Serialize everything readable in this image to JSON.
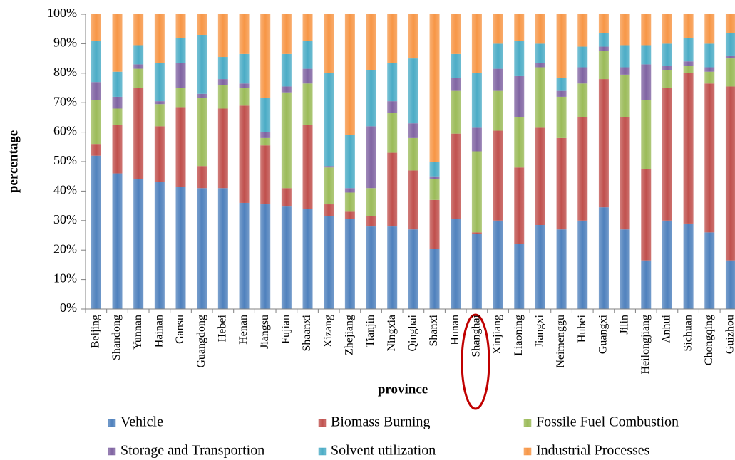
{
  "chart_data": {
    "type": "stacked_bar",
    "x_label": "province",
    "y_label": "percentage",
    "categories": [
      "Beijing",
      "Shandong",
      "Yunnan",
      "Hainan",
      "Gansu",
      "Guangdong",
      "Hebei",
      "Henan",
      "Jiangsu",
      "Fujian",
      "Shaanxi",
      "Xizang",
      "Zhejiang",
      "Tianjin",
      "Ningxia",
      "Qinghai",
      "Shanxi",
      "Hunan",
      "Shanghai",
      "Xinjiang",
      "Liaoning",
      "Jiangxi",
      "Neimenggu",
      "Hubei",
      "Guangxi",
      "Jilin",
      "Heilongjiang",
      "Anhui",
      "Sichuan",
      "Chongqing",
      "Guizhou"
    ],
    "series": [
      {
        "name": "Vehicle",
        "color": "#4f81bd",
        "values": [
          52,
          46,
          44,
          43,
          41.5,
          41,
          41,
          36,
          35.5,
          35,
          34,
          31.5,
          30.5,
          28,
          28,
          27,
          20.5,
          30.5,
          25.5,
          30,
          22,
          28.5,
          27,
          30,
          34.5,
          27,
          16.5,
          30,
          29,
          26,
          16.5
        ]
      },
      {
        "name": "Biomass Burning",
        "color": "#c0504d",
        "values": [
          4,
          16.5,
          31,
          19,
          27,
          7.5,
          27,
          33,
          20,
          6,
          28.5,
          4,
          2.5,
          3.5,
          25,
          20,
          16.5,
          29,
          0.5,
          30.5,
          26,
          33,
          31,
          35,
          43.5,
          38,
          31,
          45,
          51,
          50.5,
          59
        ]
      },
      {
        "name": "Fossile Fuel Combustion",
        "color": "#9bbb59",
        "values": [
          15,
          5.5,
          6.5,
          7.5,
          6.5,
          23,
          8,
          6,
          2.5,
          32.5,
          14,
          12.5,
          6.5,
          9.5,
          13.5,
          11,
          7,
          14.5,
          27.5,
          13.5,
          17,
          20.5,
          14,
          11.5,
          9.5,
          14.5,
          23.5,
          6,
          2.5,
          4,
          9.5
        ]
      },
      {
        "name": "Storage and Transportion",
        "color": "#8064a2",
        "values": [
          6,
          4,
          1.5,
          1,
          8.5,
          1.5,
          2,
          1.5,
          2,
          2,
          5,
          0.5,
          1.5,
          21,
          4,
          5,
          1,
          4.5,
          8,
          7.5,
          14,
          1.5,
          2,
          5.5,
          1.5,
          2.5,
          12,
          1.5,
          1.5,
          1.5,
          1
        ]
      },
      {
        "name": "Solvent utilization",
        "color": "#4bacc6",
        "values": [
          14,
          8.5,
          6.5,
          13,
          8.5,
          20,
          7.5,
          10,
          11.5,
          11,
          9.5,
          31.5,
          18,
          19,
          13,
          22,
          5,
          8,
          18.5,
          8.5,
          12,
          6.5,
          4.5,
          7,
          4.5,
          7.5,
          6.5,
          7.5,
          8,
          8,
          7.5
        ]
      },
      {
        "name": "Industrial Processes",
        "color": "#f79646",
        "values": [
          9,
          19.5,
          10.5,
          16.5,
          8,
          7,
          14.5,
          13.5,
          28.5,
          13.5,
          9,
          20,
          41,
          19,
          16.5,
          15,
          50,
          13.5,
          20,
          10,
          9,
          10,
          21.5,
          11,
          6.5,
          10.5,
          10.5,
          10,
          8,
          10,
          6.5
        ]
      }
    ],
    "ylim": [
      0,
      100
    ],
    "yticks": [
      {
        "value": 0,
        "label": "0%"
      },
      {
        "value": 10,
        "label": "10%"
      },
      {
        "value": 20,
        "label": "20%"
      },
      {
        "value": 30,
        "label": "30%"
      },
      {
        "value": 40,
        "label": "40%"
      },
      {
        "value": 50,
        "label": "50%"
      },
      {
        "value": 60,
        "label": "60%"
      },
      {
        "value": 70,
        "label": "70%"
      },
      {
        "value": 80,
        "label": "80%"
      },
      {
        "value": 90,
        "label": "90%"
      },
      {
        "value": 100,
        "label": "100%"
      }
    ],
    "grid": false,
    "legend": "bottom"
  }
}
